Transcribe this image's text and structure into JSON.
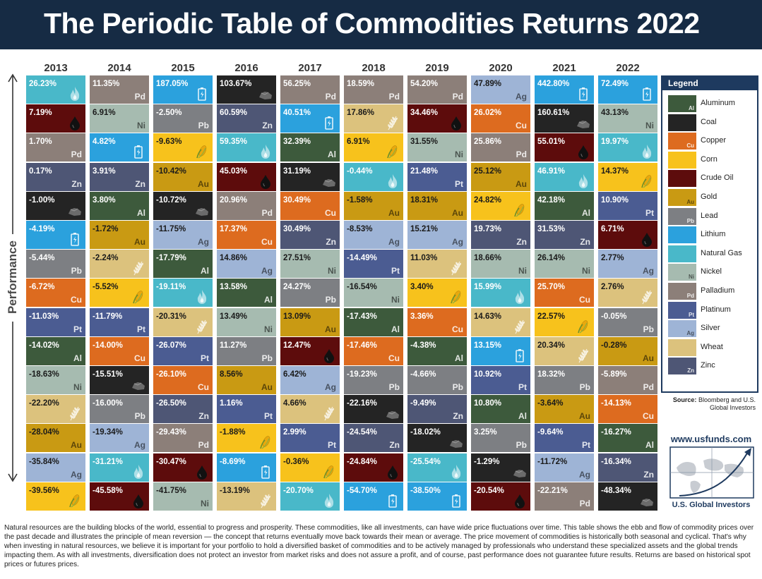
{
  "title": "The Periodic Table of Commodities Returns 2022",
  "axis_label": "Performance",
  "legend_title": "Legend",
  "commodities": {
    "Al": {
      "name": "Aluminum",
      "symbol": "Al",
      "color": "#3d5a3c",
      "icon": "",
      "dark": true
    },
    "Coal": {
      "name": "Coal",
      "symbol": "",
      "color": "#242424",
      "icon": "coal-icon",
      "dark": true
    },
    "Cu": {
      "name": "Copper",
      "symbol": "Cu",
      "color": "#dd6b1f",
      "icon": "",
      "dark": true
    },
    "Corn": {
      "name": "Corn",
      "symbol": "",
      "color": "#f7c21c",
      "icon": "corn-icon",
      "dark": false
    },
    "Oil": {
      "name": "Crude Oil",
      "symbol": "",
      "color": "#5d0c0c",
      "icon": "oil-drop-icon",
      "dark": true
    },
    "Au": {
      "name": "Gold",
      "symbol": "Au",
      "color": "#c99a13",
      "icon": "",
      "dark": false
    },
    "Pb": {
      "name": "Lead",
      "symbol": "Pb",
      "color": "#7d7f83",
      "icon": "",
      "dark": true
    },
    "Li": {
      "name": "Lithium",
      "symbol": "",
      "color": "#2ba1dd",
      "icon": "battery-icon",
      "dark": true
    },
    "Gas": {
      "name": "Natural Gas",
      "symbol": "",
      "color": "#49b8c9",
      "icon": "flame-icon",
      "dark": true
    },
    "Ni": {
      "name": "Nickel",
      "symbol": "Ni",
      "color": "#a6bbb0",
      "icon": "",
      "dark": false
    },
    "Pd": {
      "name": "Palladium",
      "symbol": "Pd",
      "color": "#8c7f79",
      "icon": "",
      "dark": true
    },
    "Pt": {
      "name": "Platinum",
      "symbol": "Pt",
      "color": "#4b5c92",
      "icon": "",
      "dark": true
    },
    "Ag": {
      "name": "Silver",
      "symbol": "Ag",
      "color": "#9eb4d6",
      "icon": "",
      "dark": false
    },
    "Wheat": {
      "name": "Wheat",
      "symbol": "",
      "color": "#dcc27d",
      "icon": "wheat-icon",
      "dark": false
    },
    "Zn": {
      "name": "Zinc",
      "symbol": "Zn",
      "color": "#4e5675",
      "icon": "",
      "dark": true
    }
  },
  "legend_order": [
    "Al",
    "Coal",
    "Cu",
    "Corn",
    "Oil",
    "Au",
    "Pb",
    "Li",
    "Gas",
    "Ni",
    "Pd",
    "Pt",
    "Ag",
    "Wheat",
    "Zn"
  ],
  "source": {
    "label": "Source:",
    "text": "Bloomberg and U.S. Global Investors"
  },
  "brand": {
    "url": "www.usfunds.com",
    "name": "U.S. Global Investors"
  },
  "footer": "Natural resources are the building blocks of the world, essential to progress and prosperity. These commodities, like all investments, can have wide price fluctuations over time. This table shows the ebb and flow of commodity prices over the past decade and illustrates the principle of mean reversion — the concept that returns eventually move back towards their mean or average. The price movement of commodities is historically both seasonal and cyclical. That's why when investing in natural resources, we believe it is important for your portfolio to hold a diversified basket of commodities and to be actively managed by professionals who understand these specialized assets and the global trends impacting them. As with all investments, diversification does not protect an investor from market risks and does not assure a profit, and of course, past performance does not guarantee future results. Returns are based on historical spot prices or futures prices.",
  "chart_data": {
    "type": "table",
    "title": "The Periodic Table of Commodities Returns 2022",
    "ylabel": "Performance",
    "columns": [
      {
        "year": "2013",
        "cells": [
          [
            "Gas",
            "26.23%"
          ],
          [
            "Oil",
            "7.19%"
          ],
          [
            "Pd",
            "1.70%"
          ],
          [
            "Zn",
            "0.17%"
          ],
          [
            "Coal",
            "-1.00%"
          ],
          [
            "Li",
            "-4.19%"
          ],
          [
            "Pb",
            "-5.44%"
          ],
          [
            "Cu",
            "-6.72%"
          ],
          [
            "Pt",
            "-11.03%"
          ],
          [
            "Al",
            "-14.02%"
          ],
          [
            "Ni",
            "-18.63%"
          ],
          [
            "Wheat",
            "-22.20%"
          ],
          [
            "Au",
            "-28.04%"
          ],
          [
            "Ag",
            "-35.84%"
          ],
          [
            "Corn",
            "-39.56%"
          ]
        ]
      },
      {
        "year": "2014",
        "cells": [
          [
            "Pd",
            "11.35%"
          ],
          [
            "Ni",
            "6.91%"
          ],
          [
            "Li",
            "4.82%"
          ],
          [
            "Zn",
            "3.91%"
          ],
          [
            "Al",
            "3.80%"
          ],
          [
            "Au",
            "-1.72%"
          ],
          [
            "Wheat",
            "-2.24%"
          ],
          [
            "Corn",
            "-5.52%"
          ],
          [
            "Pt",
            "-11.79%"
          ],
          [
            "Cu",
            "-14.00%"
          ],
          [
            "Coal",
            "-15.51%"
          ],
          [
            "Pb",
            "-16.00%"
          ],
          [
            "Ag",
            "-19.34%"
          ],
          [
            "Gas",
            "-31.21%"
          ],
          [
            "Oil",
            "-45.58%"
          ]
        ]
      },
      {
        "year": "2015",
        "cells": [
          [
            "Li",
            "187.05%"
          ],
          [
            "Pb",
            "-2.50%"
          ],
          [
            "Corn",
            "-9.63%"
          ],
          [
            "Au",
            "-10.42%"
          ],
          [
            "Coal",
            "-10.72%"
          ],
          [
            "Ag",
            "-11.75%"
          ],
          [
            "Al",
            "-17.79%"
          ],
          [
            "Gas",
            "-19.11%"
          ],
          [
            "Wheat",
            "-20.31%"
          ],
          [
            "Pt",
            "-26.07%"
          ],
          [
            "Cu",
            "-26.10%"
          ],
          [
            "Zn",
            "-26.50%"
          ],
          [
            "Pd",
            "-29.43%"
          ],
          [
            "Oil",
            "-30.47%"
          ],
          [
            "Ni",
            "-41.75%"
          ]
        ]
      },
      {
        "year": "2016",
        "cells": [
          [
            "Coal",
            "103.67%"
          ],
          [
            "Zn",
            "60.59%"
          ],
          [
            "Gas",
            "59.35%"
          ],
          [
            "Oil",
            "45.03%"
          ],
          [
            "Pd",
            "20.96%"
          ],
          [
            "Cu",
            "17.37%"
          ],
          [
            "Ag",
            "14.86%"
          ],
          [
            "Al",
            "13.58%"
          ],
          [
            "Ni",
            "13.49%"
          ],
          [
            "Pb",
            "11.27%"
          ],
          [
            "Au",
            "8.56%"
          ],
          [
            "Pt",
            "1.16%"
          ],
          [
            "Corn",
            "-1.88%"
          ],
          [
            "Li",
            "-8.69%"
          ],
          [
            "Wheat",
            "-13.19%"
          ]
        ]
      },
      {
        "year": "2017",
        "cells": [
          [
            "Pd",
            "56.25%"
          ],
          [
            "Li",
            "40.51%"
          ],
          [
            "Al",
            "32.39%"
          ],
          [
            "Coal",
            "31.19%"
          ],
          [
            "Cu",
            "30.49%"
          ],
          [
            "Zn",
            "30.49%"
          ],
          [
            "Ni",
            "27.51%"
          ],
          [
            "Pb",
            "24.27%"
          ],
          [
            "Au",
            "13.09%"
          ],
          [
            "Oil",
            "12.47%"
          ],
          [
            "Ag",
            "6.42%"
          ],
          [
            "Wheat",
            "4.66%"
          ],
          [
            "Pt",
            "2.99%"
          ],
          [
            "Corn",
            "-0.36%"
          ],
          [
            "Gas",
            "-20.70%"
          ]
        ]
      },
      {
        "year": "2018",
        "cells": [
          [
            "Pd",
            "18.59%"
          ],
          [
            "Wheat",
            "17.86%"
          ],
          [
            "Corn",
            "6.91%"
          ],
          [
            "Gas",
            "-0.44%"
          ],
          [
            "Au",
            "-1.58%"
          ],
          [
            "Ag",
            "-8.53%"
          ],
          [
            "Pt",
            "-14.49%"
          ],
          [
            "Ni",
            "-16.54%"
          ],
          [
            "Al",
            "-17.43%"
          ],
          [
            "Cu",
            "-17.46%"
          ],
          [
            "Pb",
            "-19.23%"
          ],
          [
            "Coal",
            "-22.16%"
          ],
          [
            "Zn",
            "-24.54%"
          ],
          [
            "Oil",
            "-24.84%"
          ],
          [
            "Li",
            "-54.70%"
          ]
        ]
      },
      {
        "year": "2019",
        "cells": [
          [
            "Pd",
            "54.20%"
          ],
          [
            "Oil",
            "34.46%"
          ],
          [
            "Ni",
            "31.55%"
          ],
          [
            "Pt",
            "21.48%"
          ],
          [
            "Au",
            "18.31%"
          ],
          [
            "Ag",
            "15.21%"
          ],
          [
            "Wheat",
            "11.03%"
          ],
          [
            "Corn",
            "3.40%"
          ],
          [
            "Cu",
            "3.36%"
          ],
          [
            "Al",
            "-4.38%"
          ],
          [
            "Pb",
            "-4.66%"
          ],
          [
            "Zn",
            "-9.49%"
          ],
          [
            "Coal",
            "-18.02%"
          ],
          [
            "Gas",
            "-25.54%"
          ],
          [
            "Li",
            "-38.50%"
          ]
        ]
      },
      {
        "year": "2020",
        "cells": [
          [
            "Ag",
            "47.89%"
          ],
          [
            "Cu",
            "26.02%"
          ],
          [
            "Pd",
            "25.86%"
          ],
          [
            "Au",
            "25.12%"
          ],
          [
            "Corn",
            "24.82%"
          ],
          [
            "Zn",
            "19.73%"
          ],
          [
            "Ni",
            "18.66%"
          ],
          [
            "Gas",
            "15.99%"
          ],
          [
            "Wheat",
            "14.63%"
          ],
          [
            "Li",
            "13.15%"
          ],
          [
            "Pt",
            "10.92%"
          ],
          [
            "Al",
            "10.80%"
          ],
          [
            "Pb",
            "3.25%"
          ],
          [
            "Coal",
            "-1.29%"
          ],
          [
            "Oil",
            "-20.54%"
          ]
        ]
      },
      {
        "year": "2021",
        "cells": [
          [
            "Li",
            "442.80%"
          ],
          [
            "Coal",
            "160.61%"
          ],
          [
            "Oil",
            "55.01%"
          ],
          [
            "Gas",
            "46.91%"
          ],
          [
            "Al",
            "42.18%"
          ],
          [
            "Zn",
            "31.53%"
          ],
          [
            "Ni",
            "26.14%"
          ],
          [
            "Cu",
            "25.70%"
          ],
          [
            "Corn",
            "22.57%"
          ],
          [
            "Wheat",
            "20.34%"
          ],
          [
            "Pb",
            "18.32%"
          ],
          [
            "Au",
            "-3.64%"
          ],
          [
            "Pt",
            "-9.64%"
          ],
          [
            "Ag",
            "-11.72%"
          ],
          [
            "Pd",
            "-22.21%"
          ]
        ]
      },
      {
        "year": "2022",
        "cells": [
          [
            "Li",
            "72.49%"
          ],
          [
            "Ni",
            "43.13%"
          ],
          [
            "Gas",
            "19.97%"
          ],
          [
            "Corn",
            "14.37%"
          ],
          [
            "Pt",
            "10.90%"
          ],
          [
            "Oil",
            "6.71%"
          ],
          [
            "Ag",
            "2.77%"
          ],
          [
            "Wheat",
            "2.76%"
          ],
          [
            "Pb",
            "-0.05%"
          ],
          [
            "Au",
            "-0.28%"
          ],
          [
            "Pd",
            "-5.89%"
          ],
          [
            "Cu",
            "-14.13%"
          ],
          [
            "Al",
            "-16.27%"
          ],
          [
            "Zn",
            "-16.34%"
          ],
          [
            "Coal",
            "-48.34%"
          ]
        ]
      }
    ]
  }
}
